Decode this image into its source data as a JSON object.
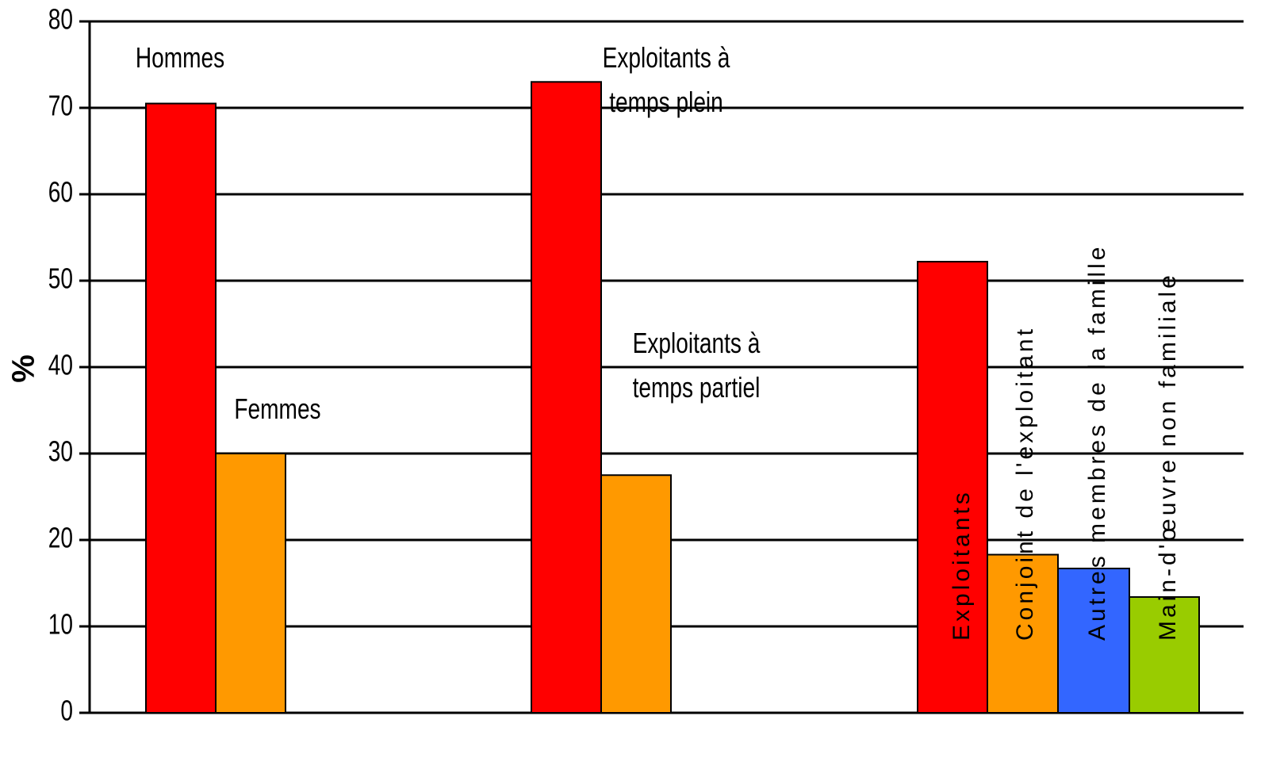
{
  "chart_data": {
    "type": "bar",
    "ylabel": "%",
    "categories": [
      "Hommes",
      "Femmes",
      "Exploitants à temps plein",
      "Exploitants à temps partiel",
      "Exploitants",
      "Conjoint de l'exploitant",
      "Autres membres de la famille",
      "Main-d'œuvre non familiale"
    ],
    "values": [
      70.5,
      30,
      73,
      27.5,
      52.2,
      18.3,
      16.7,
      13.4
    ],
    "colors": [
      "#ff0000",
      "#ff9900",
      "#ff0000",
      "#ff9900",
      "#ff0000",
      "#ff9900",
      "#3366ff",
      "#99cc00"
    ],
    "ylim": [
      0,
      80
    ],
    "yticks": [
      0,
      10,
      20,
      30,
      40,
      50,
      60,
      70,
      80
    ],
    "grid": true
  }
}
